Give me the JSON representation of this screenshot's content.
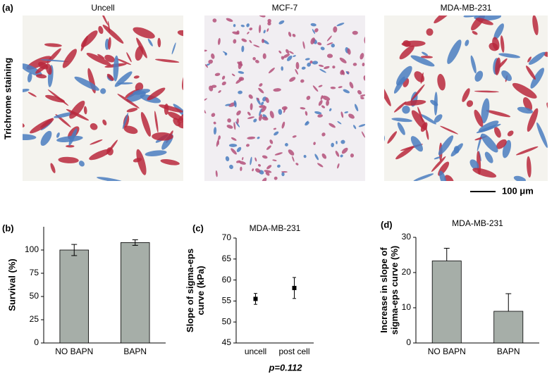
{
  "figure": {
    "panel_a": {
      "label": "(a)",
      "columns": [
        "Uncell",
        "MCF-7",
        "MDA-MB-231"
      ],
      "row_label": "Trichrome staining",
      "scale_bar": "100 μm"
    },
    "footnote": "p=0.112"
  },
  "chart_data": [
    {
      "type": "bar",
      "panel": "(b)",
      "ylabel": [
        "Survival (%)"
      ],
      "categories": [
        "NO BAPN",
        "BAPN"
      ],
      "values": [
        100,
        108
      ],
      "errors": [
        6,
        3
      ],
      "color": "#a6aea8",
      "ylim": [
        0,
        125
      ],
      "yticks": [
        0,
        25,
        50,
        75,
        100
      ]
    },
    {
      "type": "errorbar",
      "panel": "(c)",
      "title": "MDA-MB-231",
      "ylabel": [
        "Slope of sigma-eps",
        "curve (kPa)"
      ],
      "categories": [
        "uncell",
        "post cell"
      ],
      "values": [
        55.5,
        58.1
      ],
      "errors": [
        1.3,
        2.5
      ],
      "color": "#000000",
      "ylim": [
        45,
        70
      ],
      "yticks": [
        45,
        50,
        55,
        60,
        65,
        70
      ]
    },
    {
      "type": "bar",
      "panel": "(d)",
      "title": "MDA-MB-231",
      "ylabel": [
        "Increase in slope of",
        "sigma-eps curve (%)"
      ],
      "categories": [
        "NO BAPN",
        "BAPN"
      ],
      "values": [
        23.3,
        9
      ],
      "errors": [
        3.6,
        5
      ],
      "color": "#a6aea8",
      "ylim": [
        0,
        30
      ],
      "yticks": [
        0,
        10,
        20,
        30
      ]
    }
  ]
}
